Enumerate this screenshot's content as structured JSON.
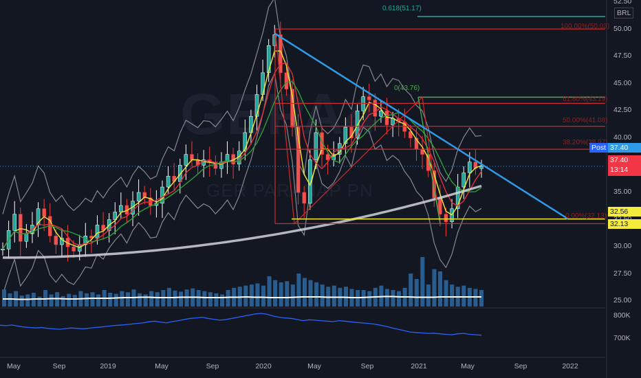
{
  "chart_data": {
    "type": "candlestick",
    "currency": "BRL",
    "price_axis": {
      "ticks": [
        "52.50",
        "50.00",
        "47.50",
        "45.00",
        "42.50",
        "40.00",
        "37.50",
        "35.00",
        "32.50",
        "30.00",
        "27.50",
        "25.00"
      ],
      "ylim": [
        23.5,
        52.5
      ]
    },
    "volume_axis": {
      "ticks": [
        "800K",
        "700K"
      ]
    },
    "x_ticks": [
      "May",
      "Sep",
      "2019",
      "May",
      "Sep",
      "2020",
      "May",
      "Sep",
      "2021",
      "May",
      "Sep",
      "2022"
    ],
    "watermark": {
      "symbol": "GEPA4",
      "name": "GER PARANAP PN"
    },
    "price_series": [
      29.8,
      31.5,
      33.0,
      30.5,
      31.2,
      32.0,
      33.5,
      32.8,
      31.0,
      30.2,
      30.8,
      30.0,
      29.6,
      30.2,
      31.0,
      30.8,
      32.0,
      31.5,
      32.5,
      33.2,
      33.8,
      33.0,
      34.2,
      35.0,
      34.5,
      33.8,
      34.0,
      35.5,
      36.5,
      36.0,
      37.5,
      38.5,
      38.0,
      37.5,
      38.0,
      37.8,
      37.2,
      37.8,
      38.5,
      37.6,
      38.8,
      40.5,
      42.0,
      44.0,
      46.0,
      48.5,
      49.5,
      46.0,
      44.5,
      41.0,
      35.0,
      34.0,
      38.0,
      40.5,
      38.5,
      38.0,
      38.5,
      39.5,
      41.0,
      40.0,
      42.5,
      43.8,
      43.5,
      42.0,
      42.5,
      41.2,
      41.8,
      41.5,
      40.6,
      40.0,
      39.0,
      38.5,
      37.0,
      34.5,
      33.0,
      32.3,
      33.5,
      35.5,
      36.8,
      37.8,
      37.2,
      37.4
    ],
    "moving_averages": [
      {
        "color": "#f5eb3a"
      },
      {
        "color": "#e0303a"
      },
      {
        "color": "#2e9e3a"
      },
      {
        "color": "#d1d4dc"
      }
    ],
    "bollinger_color": "#868993",
    "fib_levels": [
      {
        "label": "100.00%(50.03)",
        "price": 50.03,
        "color": "#d12a2a"
      },
      {
        "label": "61.80%(43.19)",
        "price": 43.19,
        "color": "#d12a2a"
      },
      {
        "label": "50.00%(41.08)",
        "price": 41.08,
        "color": "#d12a2a"
      },
      {
        "label": "38.20%(38.97)",
        "price": 38.97,
        "color": "#d12a2a"
      },
      {
        "label": "0.00%(32.13)",
        "price": 32.13,
        "color": "#d12a2a"
      }
    ],
    "fib_extra": [
      {
        "label": "0.618(51.17)",
        "price": 51.17,
        "color": "#26a69a"
      },
      {
        "label": "0(43.76)",
        "price": 43.76,
        "color": "#4caf50"
      }
    ],
    "support_line": {
      "price": 32.56,
      "color": "#f5eb3a"
    },
    "trendline": {
      "color": "#2f9ae8",
      "start_price": 49.6,
      "end_price": 32.56
    },
    "volume_bars": [
      31,
      24,
      28,
      20,
      22,
      25,
      18,
      30,
      22,
      26,
      19,
      23,
      21,
      28,
      24,
      26,
      22,
      30,
      25,
      23,
      28,
      26,
      31,
      24,
      22,
      28,
      26,
      30,
      34,
      29,
      27,
      31,
      33,
      30,
      28,
      26,
      24,
      22,
      30,
      34,
      36,
      38,
      40,
      42,
      38,
      55,
      48,
      44,
      46,
      40,
      60,
      52,
      48,
      44,
      40,
      36,
      38,
      34,
      36,
      32,
      30,
      30,
      28,
      34,
      38,
      32,
      30,
      28,
      34,
      60,
      50,
      90,
      40,
      68,
      64,
      48,
      40,
      36,
      38,
      34,
      32,
      30
    ],
    "volume_ma": [
      22,
      22,
      21,
      21,
      22,
      22,
      23,
      23,
      22,
      22,
      23,
      24,
      24,
      24,
      25,
      26,
      26,
      27,
      27,
      26,
      26,
      26,
      27,
      27,
      27,
      26,
      26,
      26,
      27,
      27,
      28,
      27,
      27,
      26,
      26,
      26,
      27,
      28,
      28,
      28,
      27,
      27,
      27,
      26,
      26,
      27,
      28,
      29,
      29,
      28,
      28,
      27,
      27,
      27,
      28,
      28,
      28,
      28,
      28,
      28
    ],
    "indicator_line": [
      760,
      758,
      761,
      756,
      752,
      750,
      748,
      750,
      746,
      744,
      742,
      745,
      748,
      746,
      744,
      747,
      750,
      752,
      755,
      758,
      760,
      762,
      765,
      768,
      770,
      775,
      778,
      774,
      770,
      776,
      780,
      785,
      790,
      792,
      795,
      790,
      786,
      782,
      785,
      790,
      795,
      800,
      805,
      810,
      812,
      808,
      800,
      795,
      792,
      790,
      785,
      780,
      784,
      782,
      780,
      778,
      776,
      780,
      778,
      775,
      772,
      770,
      768,
      765,
      760,
      755,
      748,
      742,
      736,
      730,
      728,
      726,
      724,
      725,
      722,
      720,
      718,
      722,
      724,
      720,
      718,
      716
    ]
  },
  "price_labels": {
    "post_label": "Post",
    "post_value": "37.40",
    "last_value": "37.40",
    "countdown": "13:14",
    "support_value": "32.56",
    "low_value": "32.13"
  }
}
